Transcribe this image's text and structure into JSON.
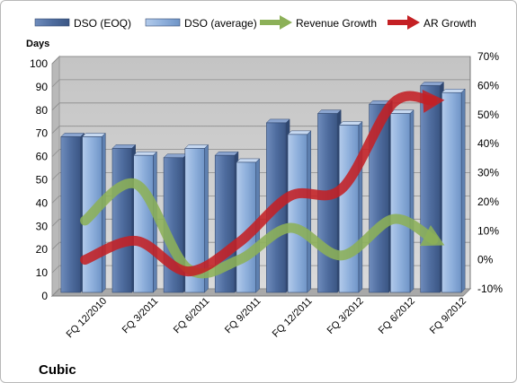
{
  "chart_data": {
    "type": "bar",
    "title": "Cubic",
    "ylabel": "Days",
    "categories": [
      "FQ 12/2010",
      "FQ 3/2011",
      "FQ 6/2011",
      "FQ 9/2011",
      "FQ 12/2011",
      "FQ 3/2012",
      "FQ 6/2012",
      "FQ 9/2012"
    ],
    "series": [
      {
        "name": "DSO (EOQ)",
        "values": [
          67,
          62,
          58,
          59,
          73,
          77,
          81,
          89
        ],
        "color": "#4f6d9f"
      },
      {
        "name": "DSO (average)",
        "values": [
          67,
          59,
          62,
          56,
          68,
          72,
          77,
          86
        ],
        "color": "#8fb0dc"
      }
    ],
    "lines": [
      {
        "name": "Revenue Growth",
        "axis": "right",
        "values": [
          13.5,
          26,
          -3,
          0,
          11,
          1.5,
          14,
          5
        ],
        "color": "#8cb058",
        "arrow": true
      },
      {
        "name": "AR Growth",
        "axis": "right",
        "values": [
          0,
          6.5,
          -4,
          6,
          22,
          24.5,
          54,
          55
        ],
        "color": "#c42024",
        "arrow": true
      }
    ],
    "ylim": [
      0,
      100
    ],
    "yticks": [
      0,
      10,
      20,
      30,
      40,
      50,
      60,
      70,
      80,
      90,
      100
    ],
    "y2lim": [
      -10,
      70
    ],
    "y2ticks": [
      "-10%",
      "0%",
      "10%",
      "20%",
      "30%",
      "40%",
      "50%",
      "60%",
      "70%"
    ],
    "legend": "top",
    "grid": true
  }
}
